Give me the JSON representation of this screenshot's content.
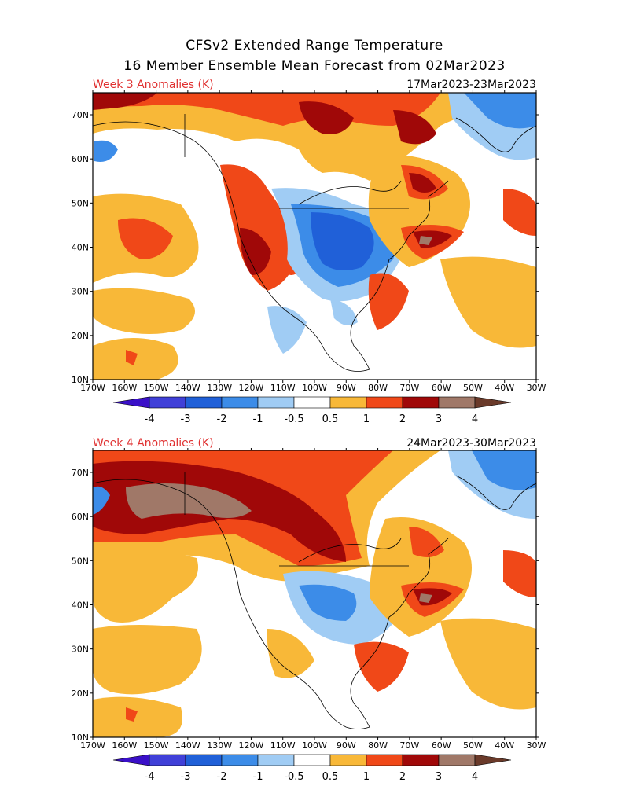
{
  "header": {
    "line1": "CFSv2 Extended Range Temperature",
    "line2": "16 Member Ensemble Mean Forecast from 02Mar2023"
  },
  "panels": [
    {
      "label": "Week 3 Anomalies (K)",
      "dates": "17Mar2023-23Mar2023"
    },
    {
      "label": "Week 4 Anomalies (K)",
      "dates": "24Mar2023-30Mar2023"
    }
  ],
  "axes": {
    "lon_labels": [
      "170W",
      "160W",
      "150W",
      "140W",
      "130W",
      "120W",
      "110W",
      "100W",
      "90W",
      "80W",
      "70W",
      "60W",
      "50W",
      "40W",
      "30W"
    ],
    "lat_labels": [
      "70N",
      "60N",
      "50N",
      "40N",
      "30N",
      "20N",
      "10N"
    ]
  },
  "colorbar": {
    "labels": [
      "-4",
      "-3",
      "-2",
      "-1",
      "-0.5",
      "0.5",
      "1",
      "2",
      "3",
      "4"
    ],
    "colors": [
      "#3a10c8",
      "#4040d8",
      "#2060d8",
      "#3c8ce8",
      "#a0ccf4",
      "#ffffff",
      "#f8b838",
      "#f04818",
      "#a00808",
      "#a07868",
      "#6a3a2a"
    ]
  }
}
